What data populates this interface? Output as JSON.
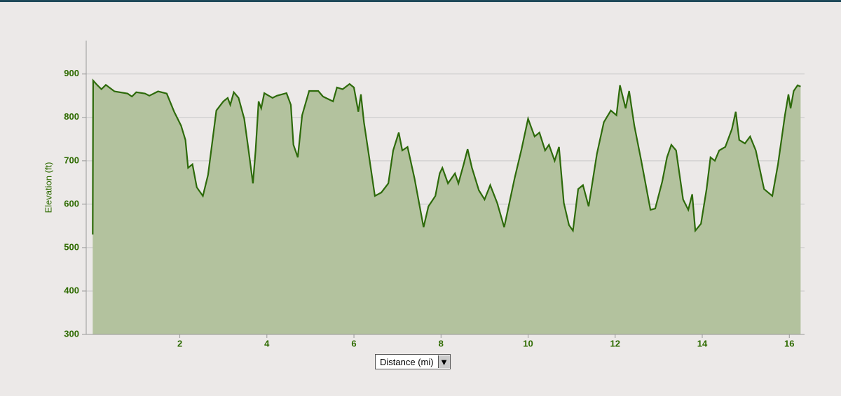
{
  "chart_data": {
    "type": "area",
    "y_label": "Elevation (ft)",
    "x_selector": "Distance (mi)",
    "color": "#2d6a0a",
    "fill": "#b3c29e",
    "xlim": [
      -0.15,
      16.35
    ],
    "ylim": [
      300,
      977
    ],
    "xticks": [
      2,
      4,
      6,
      8,
      10,
      12,
      14,
      16
    ],
    "yticks": [
      300,
      400,
      500,
      600,
      700,
      800,
      900
    ],
    "grid": true,
    "x": [
      0,
      0.01,
      0.1,
      0.2,
      0.3,
      0.5,
      0.8,
      0.9,
      1.0,
      1.2,
      1.3,
      1.5,
      1.7,
      1.87,
      2.03,
      2.13,
      2.19,
      2.29,
      2.39,
      2.53,
      2.65,
      2.84,
      3.0,
      3.1,
      3.16,
      3.24,
      3.35,
      3.48,
      3.58,
      3.68,
      3.74,
      3.81,
      3.87,
      3.94,
      4.13,
      4.23,
      4.45,
      4.55,
      4.61,
      4.71,
      4.81,
      4.97,
      5.18,
      5.29,
      5.52,
      5.61,
      5.74,
      5.9,
      6.0,
      6.1,
      6.16,
      6.23,
      6.35,
      6.48,
      6.63,
      6.79,
      6.9,
      7.03,
      7.11,
      7.23,
      7.39,
      7.6,
      7.71,
      7.87,
      7.97,
      8.03,
      8.16,
      8.32,
      8.4,
      8.52,
      8.61,
      8.71,
      8.87,
      9.0,
      9.13,
      9.29,
      9.45,
      9.69,
      9.85,
      10.0,
      10.15,
      10.26,
      10.39,
      10.48,
      10.61,
      10.71,
      10.82,
      10.94,
      11.03,
      11.15,
      11.26,
      11.39,
      11.58,
      11.74,
      11.9,
      12.03,
      12.11,
      12.24,
      12.32,
      12.44,
      12.6,
      12.81,
      12.92,
      13.08,
      13.19,
      13.29,
      13.4,
      13.56,
      13.68,
      13.77,
      13.84,
      13.97,
      14.1,
      14.19,
      14.29,
      14.39,
      14.53,
      14.68,
      14.77,
      14.85,
      14.98,
      15.1,
      15.23,
      15.42,
      15.61,
      15.74,
      15.9,
      15.98,
      16.03,
      16.1,
      16.19,
      16.26
    ],
    "values": [
      530,
      885,
      875,
      865,
      875,
      860,
      855,
      848,
      858,
      855,
      850,
      860,
      855,
      813,
      781,
      748,
      684,
      692,
      639,
      619,
      668,
      816,
      837,
      845,
      829,
      858,
      845,
      797,
      724,
      648,
      724,
      837,
      821,
      856,
      845,
      850,
      856,
      829,
      737,
      708,
      805,
      861,
      861,
      848,
      837,
      869,
      865,
      877,
      869,
      813,
      853,
      789,
      708,
      619,
      627,
      648,
      724,
      765,
      724,
      732,
      660,
      547,
      595,
      619,
      671,
      684,
      648,
      671,
      648,
      692,
      727,
      684,
      632,
      611,
      644,
      603,
      547,
      660,
      727,
      797,
      756,
      765,
      724,
      737,
      700,
      732,
      603,
      552,
      539,
      635,
      644,
      595,
      716,
      789,
      816,
      805,
      874,
      821,
      861,
      781,
      700,
      587,
      590,
      652,
      708,
      737,
      724,
      611,
      587,
      623,
      539,
      555,
      635,
      708,
      700,
      724,
      732,
      773,
      813,
      748,
      740,
      756,
      724,
      635,
      619,
      692,
      805,
      853,
      821,
      861,
      874,
      871
    ]
  }
}
